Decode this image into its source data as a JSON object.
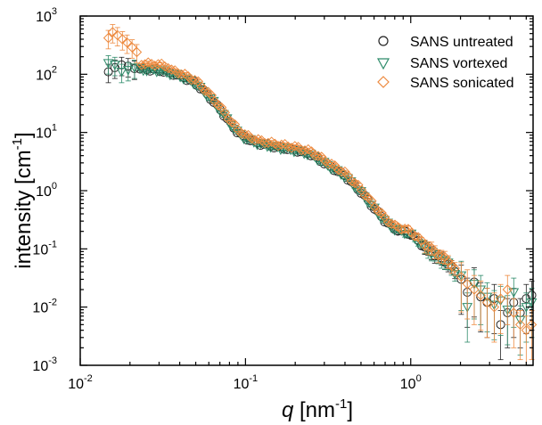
{
  "chart_data": {
    "type": "scatter",
    "x_scale": "log",
    "y_scale": "log",
    "xlim": [
      0.01,
      5.5
    ],
    "ylim": [
      0.001,
      1000
    ],
    "x_ticks": [
      {
        "value": 0.01,
        "base": "10",
        "exp": "-2"
      },
      {
        "value": 0.1,
        "base": "10",
        "exp": "-1"
      },
      {
        "value": 1,
        "base": "10",
        "exp": "0"
      }
    ],
    "y_ticks": [
      {
        "value": 0.001,
        "base": "10",
        "exp": "-3"
      },
      {
        "value": 0.01,
        "base": "10",
        "exp": "-2"
      },
      {
        "value": 0.1,
        "base": "10",
        "exp": "-1"
      },
      {
        "value": 1,
        "base": "10",
        "exp": "0"
      },
      {
        "value": 10,
        "base": "10",
        "exp": "1"
      },
      {
        "value": 100,
        "base": "10",
        "exp": "2"
      },
      {
        "value": 1000,
        "base": "10",
        "exp": "3"
      }
    ],
    "xlabel": {
      "var": "q",
      "unit_open": " [nm",
      "unit_exp": "-1",
      "unit_close": "]"
    },
    "ylabel": {
      "text": "intensity [cm",
      "exp": "-1",
      "close": "]"
    },
    "legend": {
      "placement": "top-right"
    },
    "curve_knots": [
      [
        0.015,
        120
      ],
      [
        0.02,
        125
      ],
      [
        0.03,
        118
      ],
      [
        0.04,
        95
      ],
      [
        0.05,
        70
      ],
      [
        0.06,
        42
      ],
      [
        0.07,
        25
      ],
      [
        0.08,
        15
      ],
      [
        0.09,
        10
      ],
      [
        0.1,
        8
      ],
      [
        0.12,
        6.5
      ],
      [
        0.15,
        5.7
      ],
      [
        0.2,
        5
      ],
      [
        0.25,
        4.2
      ],
      [
        0.3,
        3
      ],
      [
        0.4,
        1.8
      ],
      [
        0.5,
        0.95
      ],
      [
        0.6,
        0.5
      ],
      [
        0.7,
        0.3
      ],
      [
        0.8,
        0.22
      ],
      [
        0.9,
        0.2
      ],
      [
        1.0,
        0.18
      ],
      [
        1.1,
        0.14
      ],
      [
        1.2,
        0.11
      ],
      [
        1.4,
        0.08
      ],
      [
        1.7,
        0.055
      ],
      [
        2.0,
        0.03
      ],
      [
        3.0,
        0.02
      ],
      [
        5.5,
        0.012
      ]
    ],
    "series": [
      {
        "name": "SANS untreated",
        "marker": "circle",
        "color": "#222222",
        "lowq": [
          [
            0.0148,
            110
          ],
          [
            0.0162,
            130
          ],
          [
            0.0178,
            145
          ],
          [
            0.0195,
            138
          ],
          [
            0.0213,
            125
          ]
        ],
        "x_range": [
          0.023,
          1.85
        ],
        "n_points": 95,
        "highq": [
          [
            2.02,
            0.03
          ],
          [
            2.2,
            0.018
          ],
          [
            2.42,
            0.027
          ],
          [
            2.65,
            0.015
          ],
          [
            2.9,
            0.012
          ],
          [
            3.2,
            0.014
          ],
          [
            3.5,
            0.005
          ],
          [
            3.85,
            0.008
          ],
          [
            4.2,
            0.012
          ],
          [
            4.6,
            0.008
          ],
          [
            5.0,
            0.014
          ],
          [
            5.4,
            0.016
          ]
        ],
        "offset": 1.0
      },
      {
        "name": "SANS vortexed",
        "marker": "triangle-down",
        "color": "#2e8b6a",
        "lowq": [
          [
            0.0148,
            155
          ],
          [
            0.0162,
            145
          ],
          [
            0.0178,
            110
          ],
          [
            0.0195,
            118
          ],
          [
            0.0213,
            130
          ]
        ],
        "x_range": [
          0.023,
          1.85
        ],
        "n_points": 95,
        "highq": [
          [
            2.02,
            0.035
          ],
          [
            2.2,
            0.01
          ],
          [
            2.42,
            0.025
          ],
          [
            2.65,
            0.02
          ],
          [
            2.9,
            0.015
          ],
          [
            3.2,
            0.011
          ],
          [
            3.5,
            0.013
          ],
          [
            3.85,
            0.009
          ],
          [
            4.2,
            0.018
          ],
          [
            4.6,
            0.006
          ],
          [
            5.0,
            0.01
          ],
          [
            5.4,
            0.012
          ]
        ],
        "offset": 0.98
      },
      {
        "name": "SANS sonicated",
        "marker": "diamond",
        "color": "#ed8a3f",
        "lowq": [
          [
            0.0148,
            420
          ],
          [
            0.0157,
            530
          ],
          [
            0.0168,
            470
          ],
          [
            0.018,
            400
          ],
          [
            0.0192,
            350
          ],
          [
            0.0206,
            290
          ],
          [
            0.022,
            240
          ]
        ],
        "x_range": [
          0.0235,
          1.85
        ],
        "n_points": 95,
        "highq": [
          [
            2.02,
            0.033
          ],
          [
            2.2,
            0.025
          ],
          [
            2.42,
            0.02
          ],
          [
            2.65,
            0.016
          ],
          [
            2.9,
            0.012
          ],
          [
            3.2,
            0.01
          ],
          [
            3.5,
            0.014
          ],
          [
            3.85,
            0.02
          ],
          [
            4.2,
            0.008
          ],
          [
            4.6,
            0.005
          ],
          [
            5.0,
            0.004
          ],
          [
            5.4,
            0.005
          ]
        ],
        "offset": 1.12
      }
    ]
  }
}
